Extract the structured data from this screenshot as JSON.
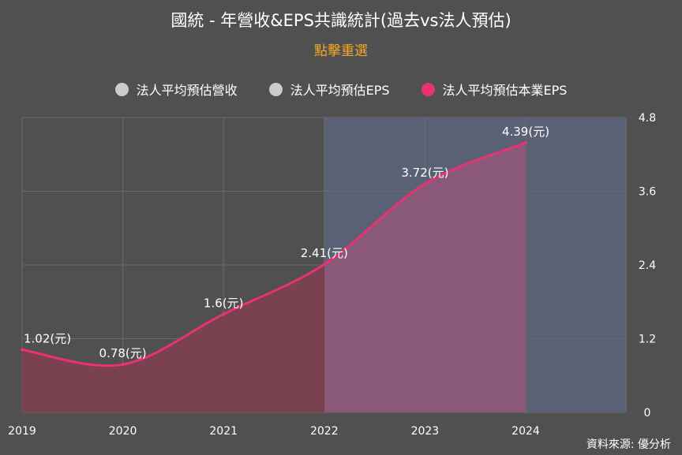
{
  "title": "國統 - 年營收&EPS共識統計(過去vs法人預估)",
  "reset_label": "點擊重選",
  "legend": [
    {
      "label": "法人平均預估營收",
      "color": "#cccccc"
    },
    {
      "label": "法人平均預估EPS",
      "color": "#cccccc"
    },
    {
      "label": "法人平均預估本業EPS",
      "color": "#e8336f"
    }
  ],
  "source": "資料來源: 優分析",
  "colors": {
    "line": "#e8336f",
    "area_past": "#7a4150",
    "area_forecast": "#8a5878",
    "forecast_band": "#5a6175",
    "background": "#505050",
    "grid": "#6a6a6a"
  },
  "chart_data": {
    "type": "area",
    "categories": [
      "2019",
      "2020",
      "2021",
      "2022",
      "2023",
      "2024"
    ],
    "series": [
      {
        "name": "法人平均預估本業EPS",
        "values": [
          1.02,
          0.78,
          1.6,
          2.41,
          3.72,
          4.39
        ],
        "labels": [
          "1.02(元)",
          "0.78(元)",
          "1.6(元)",
          "2.41(元)",
          "3.72(元)",
          "4.39(元)"
        ]
      }
    ],
    "y_ticks": [
      "4.8",
      "3.6",
      "2.4",
      "1.2",
      "0"
    ],
    "ylim": [
      0,
      4.8
    ],
    "y_axis_position": "right",
    "forecast_start": "2022",
    "grid": true
  }
}
